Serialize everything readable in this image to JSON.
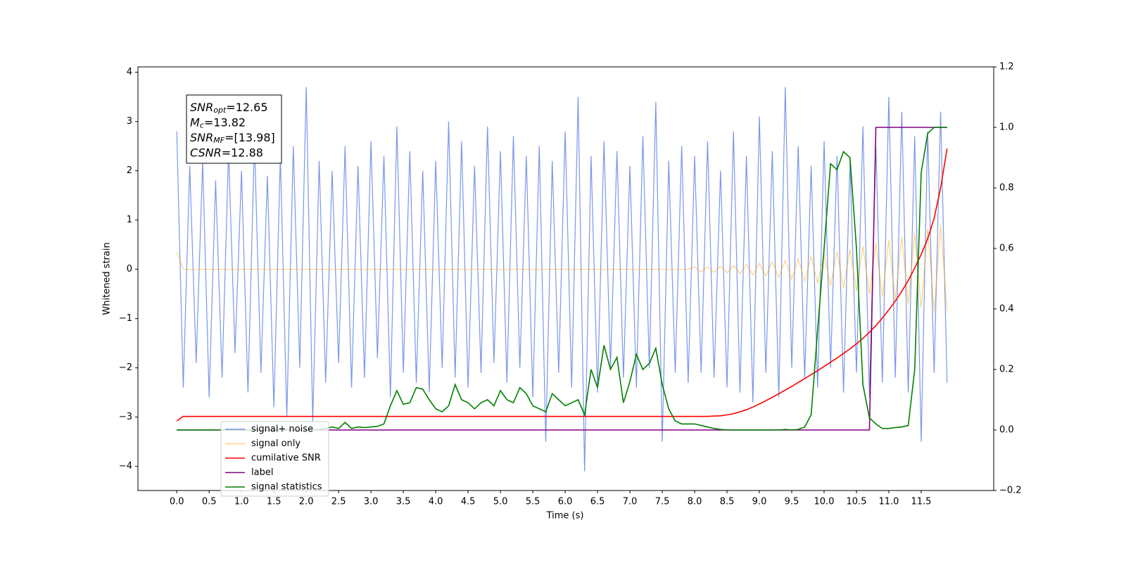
{
  "chart_data": {
    "type": "line",
    "x_label": "Time (s)",
    "y_label": "Whitened strain",
    "annotation": [
      {
        "name": "SNR",
        "sub": "opt",
        "text": "=12.65"
      },
      {
        "name": "M",
        "sub": "c",
        "text": "=13.82"
      },
      {
        "name": "SNR",
        "sub": "MF",
        "text": "=[13.98]"
      },
      {
        "name": "CSNR",
        "text": "=12.88"
      }
    ],
    "x": [
      0.0,
      0.1,
      0.2,
      0.3,
      0.4,
      0.5,
      0.6,
      0.7,
      0.8,
      0.9,
      1.0,
      1.1,
      1.2,
      1.3,
      1.4,
      1.5,
      1.6,
      1.7,
      1.8,
      1.9,
      2.0,
      2.1,
      2.2,
      2.3,
      2.4,
      2.5,
      2.6,
      2.7,
      2.8,
      2.9,
      3.0,
      3.1,
      3.2,
      3.3,
      3.4,
      3.5,
      3.6,
      3.7,
      3.8,
      3.9,
      4.0,
      4.1,
      4.2,
      4.3,
      4.4,
      4.5,
      4.6,
      4.7,
      4.8,
      4.9,
      5.0,
      5.1,
      5.2,
      5.3,
      5.4,
      5.5,
      5.6,
      5.7,
      5.8,
      5.9,
      6.0,
      6.1,
      6.2,
      6.3,
      6.4,
      6.5,
      6.6,
      6.7,
      6.8,
      6.9,
      7.0,
      7.1,
      7.2,
      7.3,
      7.4,
      7.5,
      7.6,
      7.7,
      7.8,
      7.9,
      8.0,
      8.1,
      8.2,
      8.3,
      8.4,
      8.5,
      8.6,
      8.7,
      8.8,
      8.9,
      9.0,
      9.1,
      9.2,
      9.3,
      9.4,
      9.5,
      9.6,
      9.7,
      9.8,
      9.9,
      10.0,
      10.1,
      10.2,
      10.3,
      10.4,
      10.5,
      10.6,
      10.7,
      10.8,
      10.9,
      11.0,
      11.1,
      11.2,
      11.3,
      11.4,
      11.5,
      11.6,
      11.7,
      11.8,
      11.9
    ],
    "series": [
      {
        "name": "signal+ noise",
        "color": "royalblue",
        "opacity": 0.7,
        "values": [
          2.8,
          -2.4,
          2.1,
          -1.9,
          2.2,
          -2.6,
          1.8,
          -2.2,
          2.4,
          -1.7,
          2.0,
          -2.5,
          2.6,
          -2.1,
          1.9,
          -2.8,
          2.3,
          -3.0,
          2.5,
          -2.0,
          3.7,
          -3.1,
          2.2,
          -2.3,
          2.0,
          -1.9,
          2.5,
          -2.4,
          2.1,
          -2.2,
          2.6,
          -1.8,
          2.3,
          -2.6,
          2.9,
          -2.1,
          2.4,
          -2.3,
          2.0,
          -2.5,
          2.2,
          -2.0,
          3.0,
          -2.2,
          2.6,
          -2.4,
          2.1,
          -2.1,
          2.9,
          -1.9,
          2.4,
          -2.3,
          2.7,
          -2.0,
          2.3,
          -2.6,
          2.5,
          -3.5,
          2.2,
          -2.1,
          2.8,
          -2.4,
          3.5,
          -4.1,
          2.3,
          -2.5,
          2.6,
          -2.0,
          2.4,
          -2.2,
          2.1,
          -2.4,
          2.7,
          -2.0,
          3.4,
          -3.5,
          2.2,
          -2.1,
          2.5,
          -2.3,
          2.3,
          -2.1,
          2.6,
          -2.2,
          2.0,
          -2.4,
          2.8,
          -2.5,
          2.3,
          -2.7,
          3.1,
          -2.1,
          2.4,
          -2.6,
          3.7,
          -2.0,
          2.5,
          -2.2,
          2.1,
          -2.4,
          2.6,
          -2.0,
          2.3,
          -2.5,
          2.2,
          -2.1,
          2.9,
          -2.6,
          2.5,
          -2.3,
          3.5,
          -2.2,
          3.2,
          -2.5,
          2.7,
          -3.5,
          2.8,
          -2.1,
          3.2,
          -2.3
        ]
      },
      {
        "name": "signal only",
        "color": "orange",
        "opacity": 0.5,
        "values": [
          0.35,
          0,
          0,
          0,
          0,
          0,
          0,
          0,
          0,
          0,
          0,
          0,
          0,
          0,
          0,
          0,
          0,
          0,
          0,
          0,
          0,
          0,
          0,
          0,
          0,
          0,
          0,
          0,
          0,
          0,
          0,
          0,
          0,
          0,
          0,
          0,
          0,
          0,
          0,
          0,
          0,
          0,
          0,
          0,
          0,
          0,
          0,
          0,
          0,
          0,
          0,
          0,
          0,
          0,
          0,
          0,
          0,
          0,
          0,
          0,
          0,
          0,
          0,
          0,
          0,
          0,
          0,
          0,
          0,
          0,
          0,
          0,
          0,
          0,
          0,
          0,
          0,
          0,
          0,
          0,
          0.05,
          -0.05,
          0.05,
          -0.06,
          0.06,
          -0.07,
          0.08,
          -0.09,
          0.1,
          -0.11,
          0.12,
          -0.13,
          0.15,
          -0.16,
          0.18,
          -0.2,
          0.22,
          -0.24,
          0.26,
          -0.28,
          0.31,
          -0.33,
          0.36,
          -0.38,
          0.41,
          -0.44,
          0.47,
          -0.5,
          0.53,
          -0.56,
          0.6,
          -0.63,
          0.67,
          -0.7,
          0.74,
          -0.78,
          0.82,
          -0.86,
          0.9,
          -0.85
        ]
      },
      {
        "name": "cumilative SNR",
        "color": "red",
        "axis": "y2",
        "values": [
          0.03,
          0.045,
          0.045,
          0.045,
          0.045,
          0.045,
          0.045,
          0.045,
          0.045,
          0.045,
          0.045,
          0.045,
          0.045,
          0.045,
          0.045,
          0.045,
          0.045,
          0.045,
          0.045,
          0.045,
          0.045,
          0.045,
          0.045,
          0.045,
          0.045,
          0.045,
          0.045,
          0.045,
          0.045,
          0.045,
          0.045,
          0.045,
          0.045,
          0.045,
          0.045,
          0.045,
          0.045,
          0.045,
          0.045,
          0.045,
          0.045,
          0.045,
          0.045,
          0.045,
          0.045,
          0.045,
          0.045,
          0.045,
          0.045,
          0.045,
          0.045,
          0.045,
          0.045,
          0.045,
          0.045,
          0.045,
          0.045,
          0.045,
          0.045,
          0.045,
          0.045,
          0.045,
          0.045,
          0.045,
          0.045,
          0.045,
          0.045,
          0.045,
          0.045,
          0.045,
          0.045,
          0.045,
          0.045,
          0.045,
          0.045,
          0.045,
          0.045,
          0.045,
          0.045,
          0.045,
          0.045,
          0.045,
          0.045,
          0.046,
          0.047,
          0.05,
          0.054,
          0.06,
          0.067,
          0.076,
          0.086,
          0.097,
          0.108,
          0.12,
          0.132,
          0.144,
          0.157,
          0.17,
          0.183,
          0.196,
          0.21,
          0.224,
          0.238,
          0.253,
          0.268,
          0.285,
          0.303,
          0.323,
          0.345,
          0.37,
          0.397,
          0.426,
          0.458,
          0.494,
          0.535,
          0.58,
          0.632,
          0.7,
          0.8,
          0.93
        ]
      },
      {
        "name": "label",
        "color": "purple",
        "axis": "y2",
        "values": [
          0,
          0,
          0,
          0,
          0,
          0,
          0,
          0,
          0,
          0,
          0,
          0,
          0,
          0,
          0,
          0,
          0,
          0,
          0,
          0,
          0,
          0,
          0,
          0,
          0,
          0,
          0,
          0,
          0,
          0,
          0,
          0,
          0,
          0,
          0,
          0,
          0,
          0,
          0,
          0,
          0,
          0,
          0,
          0,
          0,
          0,
          0,
          0,
          0,
          0,
          0,
          0,
          0,
          0,
          0,
          0,
          0,
          0,
          0,
          0,
          0,
          0,
          0,
          0,
          0,
          0,
          0,
          0,
          0,
          0,
          0,
          0,
          0,
          0,
          0,
          0,
          0,
          0,
          0,
          0,
          0,
          0,
          0,
          0,
          0,
          0,
          0,
          0,
          0,
          0,
          0,
          0,
          0,
          0,
          0,
          0,
          0,
          0,
          0,
          0,
          0,
          0,
          0,
          0,
          0,
          0,
          0,
          0,
          1,
          1,
          1,
          1,
          1,
          1,
          1,
          1,
          1,
          1,
          1,
          1
        ]
      },
      {
        "name": "signal statistics",
        "color": "green",
        "axis": "y2",
        "values": [
          0,
          0,
          0,
          0,
          0,
          0,
          0,
          0,
          0,
          0,
          0,
          0,
          0,
          0,
          0,
          0,
          0,
          0,
          0,
          0,
          0,
          0,
          0.002,
          0.005,
          0.01,
          0.005,
          0.025,
          0.005,
          0.01,
          0.008,
          0.01,
          0.012,
          0.02,
          0.08,
          0.13,
          0.085,
          0.09,
          0.14,
          0.135,
          0.1,
          0.07,
          0.06,
          0.08,
          0.15,
          0.1,
          0.09,
          0.07,
          0.09,
          0.1,
          0.08,
          0.13,
          0.1,
          0.09,
          0.14,
          0.12,
          0.08,
          0.07,
          0.06,
          0.12,
          0.1,
          0.08,
          0.09,
          0.1,
          0.05,
          0.2,
          0.14,
          0.28,
          0.2,
          0.24,
          0.09,
          0.16,
          0.25,
          0.2,
          0.22,
          0.27,
          0.15,
          0.07,
          0.03,
          0.02,
          0.02,
          0.02,
          0.015,
          0.01,
          0.005,
          0.002,
          0,
          0,
          0,
          0,
          0,
          0,
          0,
          0,
          0,
          0.002,
          0,
          0.002,
          0.01,
          0.05,
          0.33,
          0.6,
          0.88,
          0.86,
          0.92,
          0.9,
          0.6,
          0.15,
          0.04,
          0.02,
          0.005,
          0.005,
          0.008,
          0.01,
          0.015,
          0.2,
          0.85,
          0.98,
          1,
          1,
          1
        ]
      }
    ],
    "xlim": [
      -0.6,
      12.62
    ],
    "ylim": [
      -4.49,
      4.11
    ],
    "y2lim": [
      -0.2,
      1.2
    ],
    "xticks": [
      {
        "value": 0,
        "label": "0.0"
      },
      0.5,
      {
        "value": 1,
        "label": "1.0"
      },
      1.5,
      {
        "value": 2,
        "label": "2.0"
      },
      2.5,
      {
        "value": 3,
        "label": "3.0"
      },
      3.5,
      {
        "value": 4,
        "label": "4.0"
      },
      4.5,
      {
        "value": 5,
        "label": "5.0"
      },
      5.5,
      {
        "value": 6,
        "label": "6.0"
      },
      6.5,
      {
        "value": 7,
        "label": "7.0"
      },
      7.5,
      {
        "value": 8,
        "label": "8.0"
      },
      8.5,
      {
        "value": 9,
        "label": "9.0"
      },
      9.5,
      {
        "value": 10,
        "label": "10.0"
      },
      10.5,
      {
        "value": 11,
        "label": "11.0"
      },
      11.5
    ],
    "yticks": [
      {
        "value": -4,
        "label": "−4"
      },
      {
        "value": -3,
        "label": "−3"
      },
      {
        "value": -2,
        "label": "−2"
      },
      {
        "value": -1,
        "label": "−1"
      },
      0,
      1,
      2,
      3,
      4
    ],
    "y2ticks": [
      {
        "value": -0.2,
        "label": "−0.2"
      },
      {
        "value": 0,
        "label": "0.0"
      },
      0.2,
      0.4,
      0.6,
      0.8,
      {
        "value": 1,
        "label": "1.0"
      },
      1.2
    ],
    "legend": true
  }
}
